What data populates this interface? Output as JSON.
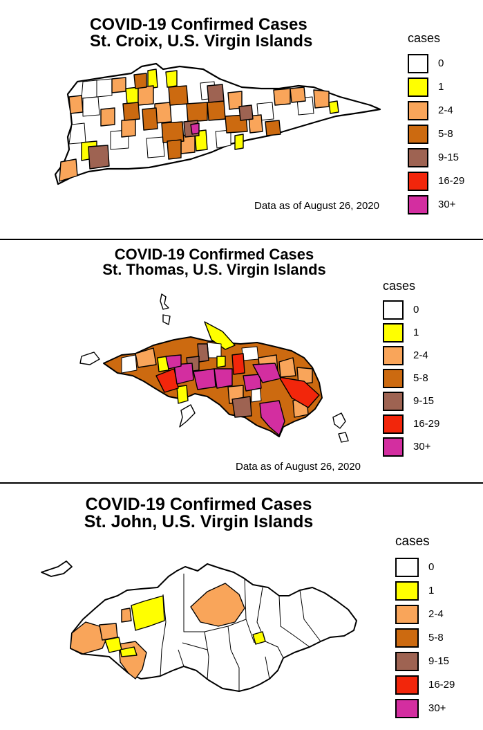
{
  "legend_bins": [
    {
      "label": "0",
      "color": "#ffffff"
    },
    {
      "label": "1",
      "color": "#ffff00"
    },
    {
      "label": "2-4",
      "color": "#f9a55a"
    },
    {
      "label": "5-8",
      "color": "#cc6a10"
    },
    {
      "label": "9-15",
      "color": "#9e6352"
    },
    {
      "label": "16-29",
      "color": "#f2260b"
    },
    {
      "label": "30+",
      "color": "#d32ea0"
    }
  ],
  "panels": [
    {
      "island": "St. Croix",
      "title_line1": "COVID-19 Confirmed Cases",
      "title_line2": "St. Croix, U.S. Virgin Islands",
      "legend_title": "cases",
      "note": "Data as of August 26, 2020"
    },
    {
      "island": "St. Thomas",
      "title_line1": "COVID-19 Confirmed Cases",
      "title_line2": "St. Thomas, U.S. Virgin Islands",
      "legend_title": "cases",
      "note": "Data as of August 26, 2020"
    },
    {
      "island": "St. John",
      "title_line1": "COVID-19 Confirmed Cases",
      "title_line2": "St. John, U.S. Virgin Islands",
      "legend_title": "cases",
      "note": ""
    }
  ]
}
